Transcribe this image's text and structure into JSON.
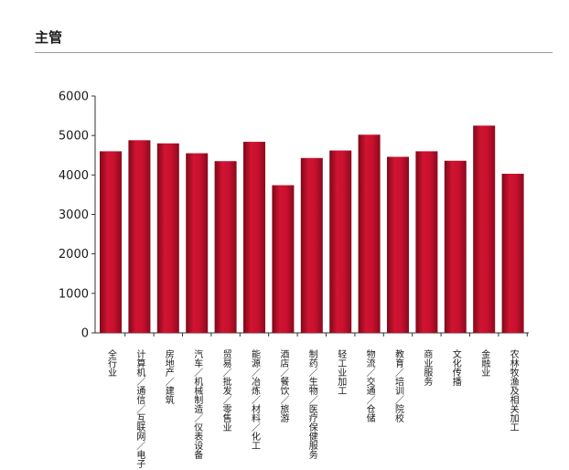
{
  "section": {
    "title": "主管"
  },
  "colors": {
    "bar_top": "#c8102e",
    "bar_bottom": "#8a0a1e",
    "axis": "#333333",
    "rule": "#9a9a9a"
  },
  "chart_data": {
    "type": "bar",
    "title": "",
    "xlabel": "",
    "ylabel": "",
    "ylim": [
      0,
      6000
    ],
    "yticks": [
      0,
      1000,
      2000,
      3000,
      4000,
      5000,
      6000
    ],
    "grid": false,
    "categories": [
      "全行业",
      "计算机／通信／互联网／电子",
      "房地产／建筑",
      "汽车／机械制造／仪表设备",
      "贸易／批发／零售业",
      "能源／冶炼／材料／化工",
      "酒店／餐饮／旅游",
      "制药／生物／医疗保健服务",
      "轻工业加工",
      "物流／交通／仓储",
      "教育／培训／院校",
      "商业服务",
      "文化传播",
      "金融业",
      "农林牧渔及相关加工"
    ],
    "values": [
      4600,
      4880,
      4800,
      4550,
      4350,
      4840,
      3740,
      4430,
      4620,
      5020,
      4460,
      4600,
      4360,
      5250,
      4030
    ]
  }
}
